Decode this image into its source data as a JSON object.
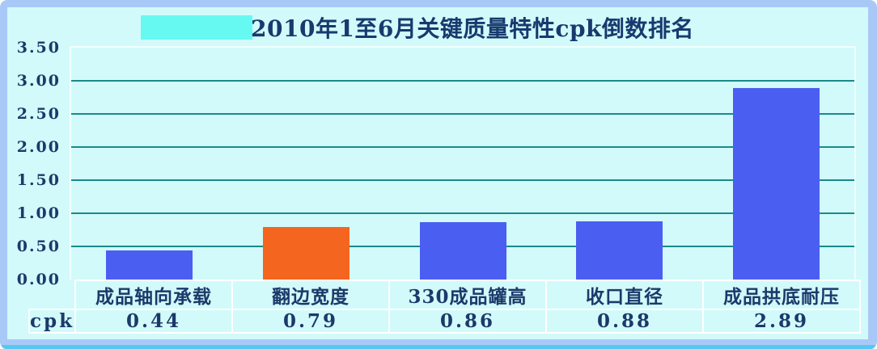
{
  "frame": {
    "border_color": "#A8C9F7",
    "bottom_accent_color": "#55C8F2",
    "background_color": "#D2FAFA",
    "title_highlight_color": "#66F9F2"
  },
  "chart_data": {
    "type": "bar",
    "title": "2010年1至6月关键质量特性cpk倒数排名",
    "categories": [
      "成品轴向承载",
      "翻边宽度",
      "330成品罐高",
      "收口直径",
      "成品拱底耐压"
    ],
    "series": [
      {
        "name": "cpk",
        "values": [
          0.44,
          0.79,
          0.86,
          0.88,
          2.89
        ]
      }
    ],
    "value_labels": [
      "0.44",
      "0.79",
      "0.86",
      "0.88",
      "2.89"
    ],
    "ylim": [
      0,
      3.5
    ],
    "yticks": [
      3.5,
      3.0,
      2.5,
      2.0,
      1.5,
      1.0,
      0.5,
      0.0
    ],
    "ytick_labels": [
      "3.50",
      "3.00",
      "2.50",
      "2.00",
      "1.50",
      "1.00",
      "0.50",
      "0.00"
    ],
    "grid": true,
    "gridline_color": "#198A8C",
    "bar_colors": [
      "#4A5EF2",
      "#F4661F",
      "#4A5EF2",
      "#4A5EF2",
      "#4A5EF2"
    ],
    "legend_position": "data-table-left",
    "data_table_row_label": "cpk"
  },
  "colors": {
    "bar_blue": "#4A5EF2",
    "bar_orange": "#F4661F",
    "text_navy": "#1B3A6A",
    "title_navy": "#173A6E",
    "table_border": "#FFFFFF",
    "plot_border": "#F2FEFE"
  }
}
